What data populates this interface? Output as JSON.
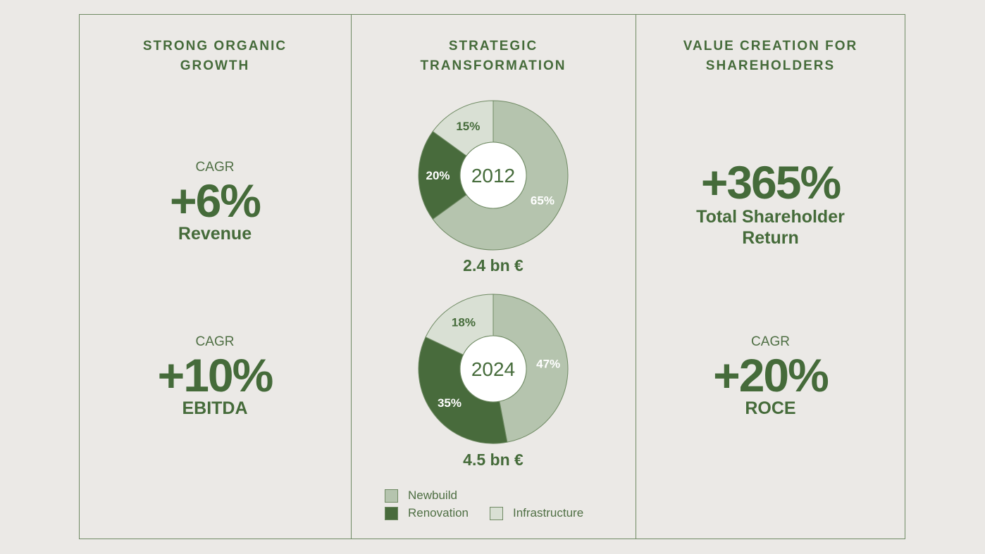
{
  "colors": {
    "newbuild": "#b5c4ae",
    "renovation": "#486b3c",
    "infrastructure": "#d9e0d4",
    "text": "#456b3a",
    "line": "#6f8a63"
  },
  "left": {
    "heading": [
      "STRONG ORGANIC",
      "GROWTH"
    ],
    "kpis": [
      {
        "cagr": "CAGR",
        "value": "+6%",
        "label": "Revenue"
      },
      {
        "cagr": "CAGR",
        "value": "+10%",
        "label": "EBITDA"
      }
    ]
  },
  "middle": {
    "heading": [
      "STRATEGIC",
      "TRANSFORMATION"
    ]
  },
  "right": {
    "heading": [
      "VALUE CREATION FOR",
      "SHAREHOLDERS"
    ],
    "tsr": {
      "value": "+365%",
      "label": [
        "Total Shareholder",
        "Return"
      ]
    },
    "roce": {
      "cagr": "CAGR",
      "value": "+20%",
      "label": "ROCE"
    }
  },
  "chart_data": [
    {
      "type": "pie",
      "center_label": "2012",
      "total_label": "2.4 bn €",
      "slices": [
        {
          "name": "Newbuild",
          "value": 65,
          "label": "65%"
        },
        {
          "name": "Renovation",
          "value": 20,
          "label": "20%"
        },
        {
          "name": "Infrastructure",
          "value": 15,
          "label": "15%"
        }
      ]
    },
    {
      "type": "pie",
      "center_label": "2024",
      "total_label": "4.5 bn €",
      "slices": [
        {
          "name": "Newbuild",
          "value": 47,
          "label": "47%"
        },
        {
          "name": "Renovation",
          "value": 35,
          "label": "35%"
        },
        {
          "name": "Infrastructure",
          "value": 18,
          "label": "18%"
        }
      ]
    }
  ],
  "legend": [
    {
      "name": "Newbuild",
      "key": "newbuild"
    },
    {
      "name": "Renovation",
      "key": "renovation"
    },
    {
      "name": "Infrastructure",
      "key": "infrastructure"
    }
  ]
}
